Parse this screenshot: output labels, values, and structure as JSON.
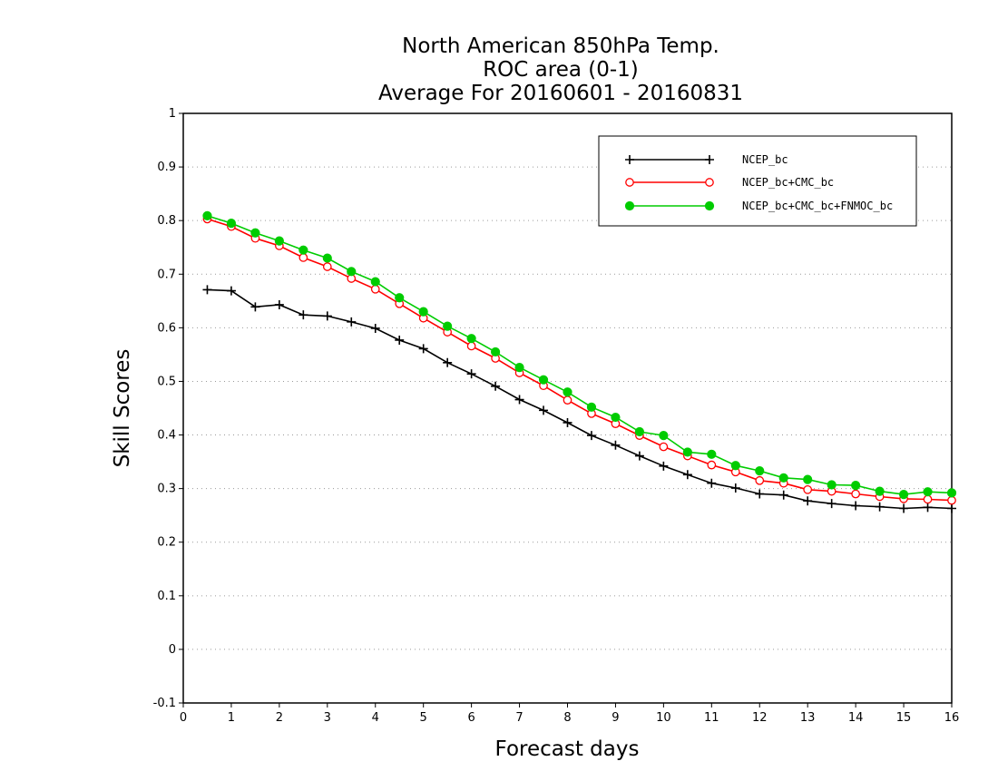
{
  "chart_data": {
    "type": "line",
    "title": [
      "North American 850hPa Temp.",
      "ROC area (0-1)",
      "Average For 20160601 - 20160831"
    ],
    "xlabel": "Forecast days",
    "ylabel": "Skill Scores",
    "xlim": [
      0,
      16
    ],
    "ylim": [
      -0.1,
      1
    ],
    "xticks": [
      0,
      1,
      2,
      3,
      4,
      5,
      6,
      7,
      8,
      9,
      10,
      11,
      12,
      13,
      14,
      15,
      16
    ],
    "yticks": [
      -0.1,
      0,
      0.1,
      0.2,
      0.3,
      0.4,
      0.5,
      0.6,
      0.7,
      0.8,
      0.9,
      1
    ],
    "ytick_labels": [
      "-0.1",
      "0",
      "0.1",
      "0.2",
      "0.3",
      "0.4",
      "0.5",
      "0.6",
      "0.7",
      "0.8",
      "0.9",
      "1"
    ],
    "grid": "horizontal dotted",
    "legend_position": "top-right",
    "x": [
      0.5,
      1,
      1.5,
      2,
      2.5,
      3,
      3.5,
      4,
      4.5,
      5,
      5.5,
      6,
      6.5,
      7,
      7.5,
      8,
      8.5,
      9,
      9.5,
      10,
      10.5,
      11,
      11.5,
      12,
      12.5,
      13,
      13.5,
      14,
      14.5,
      15,
      15.5,
      16
    ],
    "series": [
      {
        "name": "NCEP_bc",
        "color": "#000000",
        "marker": "plus",
        "values": [
          0.671,
          0.669,
          0.639,
          0.643,
          0.624,
          0.622,
          0.611,
          0.599,
          0.577,
          0.561,
          0.535,
          0.514,
          0.491,
          0.466,
          0.446,
          0.423,
          0.399,
          0.381,
          0.361,
          0.342,
          0.326,
          0.31,
          0.301,
          0.29,
          0.288,
          0.277,
          0.272,
          0.268,
          0.266,
          0.263,
          0.265,
          0.263
        ]
      },
      {
        "name": "NCEP_bc+CMC_bc",
        "color": "#ff0000",
        "marker": "open-circle",
        "values": [
          0.803,
          0.789,
          0.767,
          0.753,
          0.731,
          0.714,
          0.692,
          0.672,
          0.645,
          0.618,
          0.592,
          0.566,
          0.543,
          0.516,
          0.492,
          0.465,
          0.44,
          0.421,
          0.399,
          0.378,
          0.361,
          0.344,
          0.331,
          0.315,
          0.31,
          0.298,
          0.295,
          0.29,
          0.285,
          0.281,
          0.28,
          0.278
        ]
      },
      {
        "name": "NCEP_bc+CMC_bc+FNMOC_bc",
        "color": "#00cc00",
        "marker": "filled-circle",
        "values": [
          0.809,
          0.795,
          0.777,
          0.762,
          0.745,
          0.73,
          0.705,
          0.686,
          0.656,
          0.63,
          0.603,
          0.58,
          0.555,
          0.526,
          0.503,
          0.48,
          0.452,
          0.433,
          0.406,
          0.399,
          0.368,
          0.364,
          0.343,
          0.333,
          0.32,
          0.317,
          0.307,
          0.306,
          0.295,
          0.289,
          0.294,
          0.292
        ]
      }
    ]
  }
}
